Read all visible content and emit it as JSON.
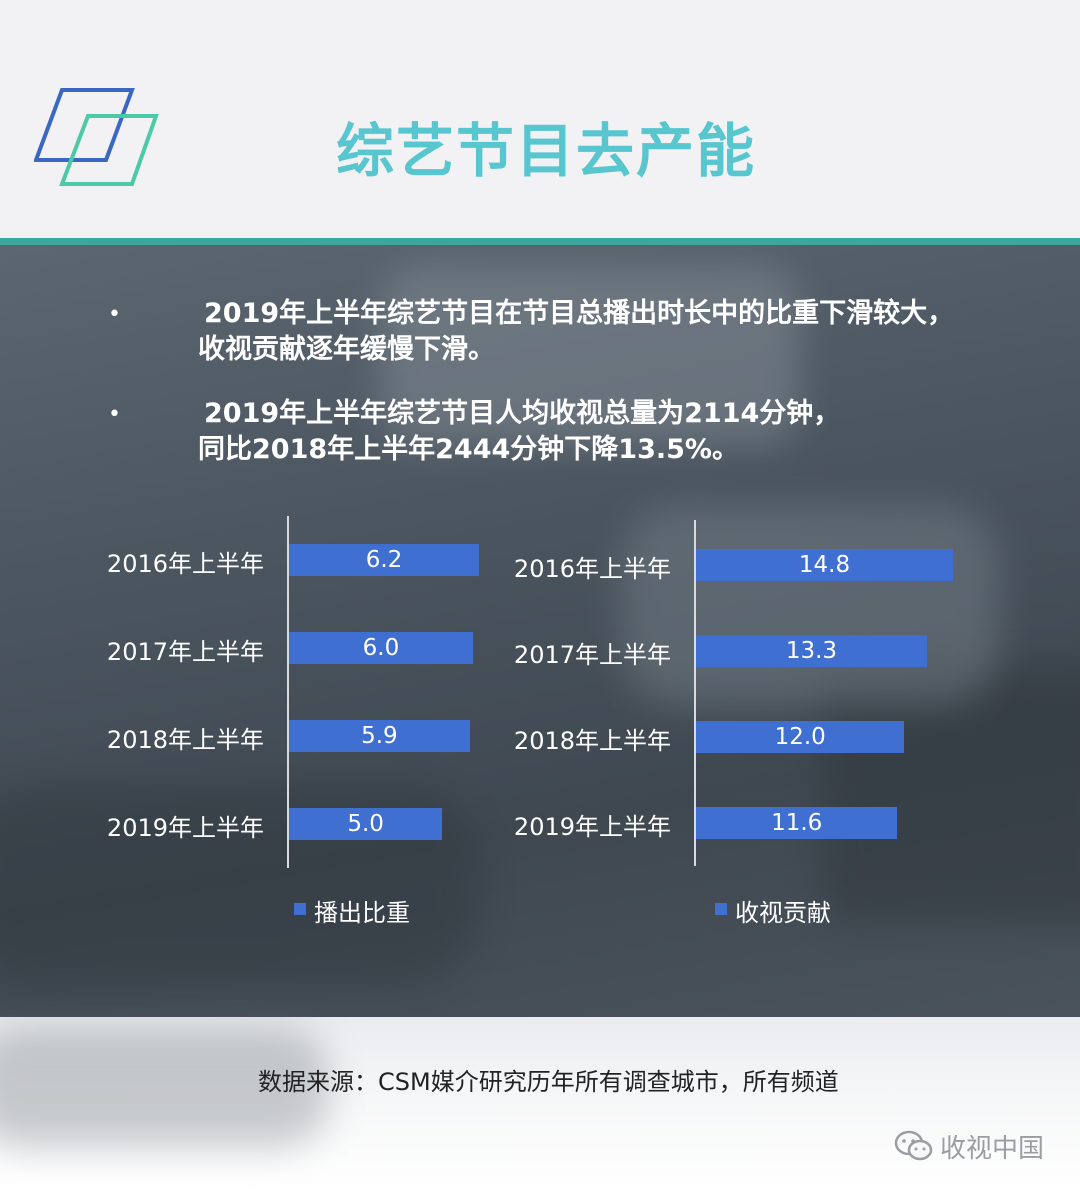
{
  "title": "综艺节目去产能",
  "bullets": [
    {
      "line1": "2019年上半年综艺节目在节目总播出时长中的比重下滑较大，",
      "line2": "收视贡献逐年缓慢下滑。"
    },
    {
      "line1": "2019年上半年综艺节目人均收视总量为2114分钟，",
      "line2": "同比2018年上半年2444分钟下降13.5%。"
    }
  ],
  "bullet_symbol": "•",
  "chart_data": [
    {
      "type": "bar",
      "orientation": "horizontal",
      "categories": [
        "2016年上半年",
        "2017年上半年",
        "2018年上半年",
        "2019年上半年"
      ],
      "series": [
        {
          "name": "播出比重",
          "values": [
            6.2,
            6.0,
            5.9,
            5.0
          ],
          "labels": [
            "6.2",
            "6.0",
            "5.9",
            "5.0"
          ]
        }
      ],
      "xlim": [
        0,
        6.2
      ],
      "grid": false,
      "legend": "bottom",
      "color": "#3f6fd0"
    },
    {
      "type": "bar",
      "orientation": "horizontal",
      "categories": [
        "2016年上半年",
        "2017年上半年",
        "2018年上半年",
        "2019年上半年"
      ],
      "series": [
        {
          "name": "收视贡献",
          "values": [
            14.8,
            13.3,
            12.0,
            11.6
          ],
          "labels": [
            "14.8",
            "13.3",
            "12.0",
            "11.6"
          ]
        }
      ],
      "xlim": [
        0,
        14.8
      ],
      "grid": false,
      "legend": "bottom",
      "color": "#3f6fd0"
    }
  ],
  "source": "数据来源：CSM媒介研究历年所有调查城市，所有频道",
  "watermark": "收视中国",
  "icons": {
    "logo": "parallelogram-logo-icon",
    "watermark": "wechat-icon"
  },
  "colors": {
    "title": "#58c6cf",
    "divider": "#3aa89c",
    "bar": "#3f6fd0"
  }
}
